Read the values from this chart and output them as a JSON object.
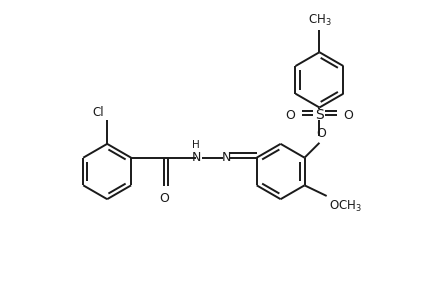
{
  "bg_color": "#ffffff",
  "line_color": "#1a1a1a",
  "line_width": 1.4,
  "font_size": 8.5,
  "figsize": [
    4.44,
    2.92
  ],
  "dpi": 100,
  "xlim": [
    -5.5,
    4.5
  ],
  "ylim": [
    -3.0,
    3.8
  ]
}
